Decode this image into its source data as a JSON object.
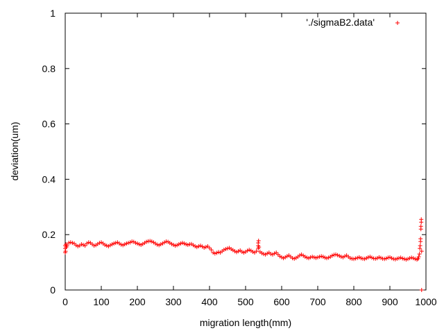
{
  "chart_data": {
    "type": "scatter",
    "title": "",
    "xlabel": "migration length(mm)",
    "ylabel": "deviation(um)",
    "xlim": [
      0,
      1000
    ],
    "ylim": [
      0,
      1
    ],
    "x_ticks": [
      "0",
      "100",
      "200",
      "300",
      "400",
      "500",
      "600",
      "700",
      "800",
      "900",
      "1000"
    ],
    "y_ticks": [
      "0",
      "0.2",
      "0.4",
      "0.6",
      "0.8",
      "1"
    ],
    "grid": false,
    "legend": {
      "position": "top-right"
    },
    "series": [
      {
        "name": "'./sigmaB2.data'",
        "color": "#ff0000",
        "marker": "plus",
        "points": [
          [
            0,
            0.135
          ],
          [
            0,
            0.15
          ],
          [
            0,
            0.16
          ],
          [
            1,
            0.14
          ],
          [
            2,
            0.165
          ],
          [
            3,
            0.155
          ],
          [
            5,
            0.16
          ],
          [
            10,
            0.17
          ],
          [
            15,
            0.172
          ],
          [
            20,
            0.17
          ],
          [
            25,
            0.168
          ],
          [
            30,
            0.162
          ],
          [
            35,
            0.158
          ],
          [
            40,
            0.16
          ],
          [
            45,
            0.165
          ],
          [
            50,
            0.163
          ],
          [
            55,
            0.16
          ],
          [
            60,
            0.168
          ],
          [
            65,
            0.172
          ],
          [
            70,
            0.17
          ],
          [
            75,
            0.165
          ],
          [
            80,
            0.16
          ],
          [
            85,
            0.162
          ],
          [
            90,
            0.166
          ],
          [
            95,
            0.17
          ],
          [
            100,
            0.172
          ],
          [
            105,
            0.168
          ],
          [
            110,
            0.163
          ],
          [
            115,
            0.16
          ],
          [
            120,
            0.158
          ],
          [
            125,
            0.162
          ],
          [
            130,
            0.165
          ],
          [
            135,
            0.168
          ],
          [
            140,
            0.17
          ],
          [
            145,
            0.172
          ],
          [
            150,
            0.168
          ],
          [
            155,
            0.164
          ],
          [
            160,
            0.162
          ],
          [
            165,
            0.165
          ],
          [
            170,
            0.168
          ],
          [
            175,
            0.17
          ],
          [
            180,
            0.172
          ],
          [
            185,
            0.175
          ],
          [
            190,
            0.174
          ],
          [
            195,
            0.17
          ],
          [
            200,
            0.168
          ],
          [
            205,
            0.165
          ],
          [
            210,
            0.163
          ],
          [
            215,
            0.166
          ],
          [
            220,
            0.17
          ],
          [
            225,
            0.174
          ],
          [
            230,
            0.176
          ],
          [
            235,
            0.177
          ],
          [
            240,
            0.175
          ],
          [
            245,
            0.172
          ],
          [
            250,
            0.168
          ],
          [
            255,
            0.164
          ],
          [
            260,
            0.162
          ],
          [
            265,
            0.165
          ],
          [
            270,
            0.168
          ],
          [
            275,
            0.172
          ],
          [
            280,
            0.175
          ],
          [
            285,
            0.174
          ],
          [
            290,
            0.17
          ],
          [
            295,
            0.166
          ],
          [
            300,
            0.163
          ],
          [
            305,
            0.16
          ],
          [
            310,
            0.162
          ],
          [
            315,
            0.165
          ],
          [
            320,
            0.168
          ],
          [
            325,
            0.17
          ],
          [
            330,
            0.168
          ],
          [
            335,
            0.165
          ],
          [
            340,
            0.163
          ],
          [
            345,
            0.165
          ],
          [
            350,
            0.166
          ],
          [
            355,
            0.162
          ],
          [
            360,
            0.158
          ],
          [
            365,
            0.155
          ],
          [
            370,
            0.158
          ],
          [
            375,
            0.16
          ],
          [
            380,
            0.157
          ],
          [
            385,
            0.153
          ],
          [
            390,
            0.155
          ],
          [
            395,
            0.158
          ],
          [
            400,
            0.152
          ],
          [
            405,
            0.145
          ],
          [
            410,
            0.135
          ],
          [
            415,
            0.132
          ],
          [
            420,
            0.134
          ],
          [
            425,
            0.137
          ],
          [
            430,
            0.135
          ],
          [
            435,
            0.14
          ],
          [
            440,
            0.145
          ],
          [
            445,
            0.148
          ],
          [
            450,
            0.15
          ],
          [
            455,
            0.152
          ],
          [
            460,
            0.148
          ],
          [
            465,
            0.144
          ],
          [
            470,
            0.14
          ],
          [
            475,
            0.137
          ],
          [
            480,
            0.14
          ],
          [
            485,
            0.143
          ],
          [
            490,
            0.138
          ],
          [
            495,
            0.135
          ],
          [
            500,
            0.138
          ],
          [
            505,
            0.142
          ],
          [
            510,
            0.145
          ],
          [
            515,
            0.142
          ],
          [
            520,
            0.138
          ],
          [
            525,
            0.135
          ],
          [
            530,
            0.14
          ],
          [
            535,
            0.15
          ],
          [
            535,
            0.16
          ],
          [
            535,
            0.17
          ],
          [
            536,
            0.178
          ],
          [
            537,
            0.155
          ],
          [
            540,
            0.138
          ],
          [
            545,
            0.133
          ],
          [
            550,
            0.13
          ],
          [
            555,
            0.128
          ],
          [
            560,
            0.132
          ],
          [
            565,
            0.135
          ],
          [
            570,
            0.13
          ],
          [
            575,
            0.128
          ],
          [
            580,
            0.132
          ],
          [
            585,
            0.135
          ],
          [
            590,
            0.128
          ],
          [
            595,
            0.122
          ],
          [
            600,
            0.118
          ],
          [
            605,
            0.115
          ],
          [
            610,
            0.118
          ],
          [
            615,
            0.122
          ],
          [
            620,
            0.125
          ],
          [
            625,
            0.12
          ],
          [
            630,
            0.115
          ],
          [
            635,
            0.113
          ],
          [
            640,
            0.116
          ],
          [
            645,
            0.12
          ],
          [
            650,
            0.125
          ],
          [
            655,
            0.128
          ],
          [
            660,
            0.124
          ],
          [
            665,
            0.12
          ],
          [
            670,
            0.117
          ],
          [
            675,
            0.115
          ],
          [
            680,
            0.118
          ],
          [
            685,
            0.12
          ],
          [
            690,
            0.118
          ],
          [
            695,
            0.116
          ],
          [
            700,
            0.118
          ],
          [
            705,
            0.12
          ],
          [
            710,
            0.122
          ],
          [
            715,
            0.12
          ],
          [
            720,
            0.117
          ],
          [
            725,
            0.115
          ],
          [
            730,
            0.117
          ],
          [
            735,
            0.12
          ],
          [
            740,
            0.124
          ],
          [
            745,
            0.127
          ],
          [
            750,
            0.128
          ],
          [
            755,
            0.126
          ],
          [
            760,
            0.123
          ],
          [
            765,
            0.12
          ],
          [
            770,
            0.118
          ],
          [
            775,
            0.122
          ],
          [
            780,
            0.125
          ],
          [
            785,
            0.12
          ],
          [
            790,
            0.115
          ],
          [
            795,
            0.113
          ],
          [
            800,
            0.112
          ],
          [
            805,
            0.114
          ],
          [
            810,
            0.116
          ],
          [
            815,
            0.118
          ],
          [
            820,
            0.115
          ],
          [
            825,
            0.113
          ],
          [
            830,
            0.112
          ],
          [
            835,
            0.115
          ],
          [
            840,
            0.118
          ],
          [
            845,
            0.12
          ],
          [
            850,
            0.117
          ],
          [
            855,
            0.114
          ],
          [
            860,
            0.113
          ],
          [
            865,
            0.115
          ],
          [
            870,
            0.118
          ],
          [
            875,
            0.116
          ],
          [
            880,
            0.113
          ],
          [
            885,
            0.112
          ],
          [
            890,
            0.114
          ],
          [
            895,
            0.117
          ],
          [
            900,
            0.118
          ],
          [
            905,
            0.115
          ],
          [
            910,
            0.112
          ],
          [
            915,
            0.111
          ],
          [
            920,
            0.113
          ],
          [
            925,
            0.115
          ],
          [
            930,
            0.117
          ],
          [
            935,
            0.114
          ],
          [
            940,
            0.112
          ],
          [
            945,
            0.11
          ],
          [
            950,
            0.112
          ],
          [
            955,
            0.115
          ],
          [
            960,
            0.117
          ],
          [
            965,
            0.115
          ],
          [
            970,
            0.112
          ],
          [
            975,
            0.11
          ],
          [
            978,
            0.113
          ],
          [
            980,
            0.12
          ],
          [
            982,
            0.13
          ],
          [
            983,
            0.15
          ],
          [
            984,
            0.16
          ],
          [
            985,
            0.175
          ],
          [
            985,
            0.185
          ],
          [
            986,
            0.22
          ],
          [
            986,
            0.23
          ],
          [
            987,
            0.245
          ],
          [
            987,
            0.255
          ],
          [
            988,
            0.14
          ],
          [
            988,
            0.0
          ]
        ]
      }
    ]
  }
}
